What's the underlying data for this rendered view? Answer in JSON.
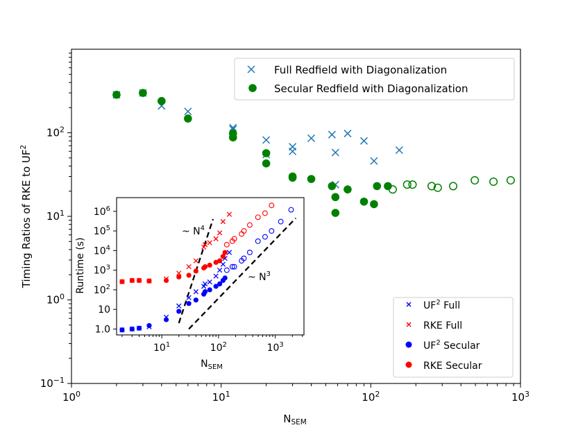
{
  "chart_data": [
    {
      "type": "scatter",
      "xlabel": "N",
      "xlabel_sub": "SEM",
      "ylabel": "Timing Ratios of RKE to UF",
      "ylabel_sup": "2",
      "xscale": "log",
      "yscale": "log",
      "xlim": [
        1,
        1000
      ],
      "ylim": [
        0.1,
        1000
      ],
      "xtick_labels": [
        {
          "base": "10",
          "exp": "0"
        },
        {
          "base": "10",
          "exp": "1"
        },
        {
          "base": "10",
          "exp": "2"
        },
        {
          "base": "10",
          "exp": "3"
        }
      ],
      "ytick_labels": [
        {
          "base": "10",
          "exp": "−1"
        },
        {
          "base": "10",
          "exp": "0"
        },
        {
          "base": "10",
          "exp": "1"
        },
        {
          "base": "10",
          "exp": "2"
        }
      ],
      "legend_position": "top-right",
      "series": [
        {
          "name": "Full Redfield with Diagonalization",
          "marker": "x",
          "color": "#1f77b4",
          "points": [
            [
              2,
              285
            ],
            [
              3,
              300
            ],
            [
              4,
              210
            ],
            [
              6,
              180
            ],
            [
              12,
              115
            ],
            [
              12,
              110
            ],
            [
              20,
              82
            ],
            [
              20,
              55
            ],
            [
              30,
              68
            ],
            [
              30,
              60
            ],
            [
              40,
              86
            ],
            [
              55,
              95
            ],
            [
              58,
              58
            ],
            [
              58,
              24
            ],
            [
              70,
              98
            ],
            [
              90,
              80
            ],
            [
              105,
              46
            ],
            [
              155,
              62
            ]
          ]
        },
        {
          "name": "Secular Redfield with Diagonalization",
          "marker": "o",
          "color": "#008000",
          "points": [
            [
              2,
              285
            ],
            [
              3,
              300
            ],
            [
              4,
              240
            ],
            [
              6,
              148
            ],
            [
              12,
              98
            ],
            [
              12,
              88
            ],
            [
              20,
              57
            ],
            [
              20,
              43
            ],
            [
              30,
              30
            ],
            [
              30,
              29
            ],
            [
              40,
              28
            ],
            [
              55,
              23
            ],
            [
              58,
              17
            ],
            [
              58,
              11
            ],
            [
              70,
              21
            ],
            [
              90,
              15
            ],
            [
              105,
              14
            ],
            [
              110,
              23
            ],
            [
              130,
              23
            ]
          ],
          "hollow_points": [
            [
              140,
              21
            ],
            [
              175,
              24
            ],
            [
              190,
              24
            ],
            [
              255,
              23
            ],
            [
              280,
              22
            ],
            [
              355,
              23
            ],
            [
              495,
              27
            ],
            [
              660,
              26
            ],
            [
              860,
              27
            ]
          ]
        }
      ]
    },
    {
      "type": "scatter",
      "xlabel": "N",
      "xlabel_sub": "SEM",
      "ylabel": "Runtime (s)",
      "xscale": "log",
      "yscale": "log",
      "xtick_labels": [
        {
          "base": "10",
          "exp": "1"
        },
        {
          "base": "10",
          "exp": "2"
        },
        {
          "base": "10",
          "exp": "3"
        }
      ],
      "ytick_labels": [
        {
          "base": "1.0",
          "exp": ""
        },
        {
          "base": "10",
          "exp": ""
        },
        {
          "base": "10",
          "exp": "2"
        },
        {
          "base": "10",
          "exp": "3"
        },
        {
          "base": "10",
          "exp": "4"
        },
        {
          "base": "10",
          "exp": "5"
        },
        {
          "base": "10",
          "exp": "6"
        }
      ],
      "legend_position": "outside-bottom-right",
      "annotations": [
        {
          "text": "~ N",
          "sup": "4"
        },
        {
          "text": "~ N",
          "sup": "3"
        }
      ],
      "series": [
        {
          "name_main": "UF",
          "name_sup": "2",
          "name_rest": " Full",
          "marker": "x",
          "color": "#0000ff",
          "points": [
            [
              2,
              0.9
            ],
            [
              3,
              1.0
            ],
            [
              4,
              1.1
            ],
            [
              6,
              1.3
            ],
            [
              12,
              4
            ],
            [
              20,
              15
            ],
            [
              30,
              40
            ],
            [
              40,
              80
            ],
            [
              55,
              150
            ],
            [
              58,
              200
            ],
            [
              70,
              250
            ],
            [
              90,
              500
            ],
            [
              105,
              1000
            ],
            [
              120,
              2000
            ],
            [
              130,
              4000
            ],
            [
              155,
              8000
            ]
          ]
        },
        {
          "name_main": "RKE",
          "name_sup": "",
          "name_rest": " Full",
          "marker": "x",
          "color": "#ff0000",
          "points": [
            [
              2,
              260
            ],
            [
              3,
              300
            ],
            [
              4,
              300
            ],
            [
              6,
              280
            ],
            [
              12,
              360
            ],
            [
              20,
              700
            ],
            [
              30,
              1500
            ],
            [
              40,
              3000
            ],
            [
              55,
              15000
            ],
            [
              58,
              20000
            ],
            [
              70,
              25000
            ],
            [
              90,
              40000
            ],
            [
              105,
              80000
            ],
            [
              120,
              300000
            ],
            [
              155,
              700000
            ]
          ]
        },
        {
          "name_main": "UF",
          "name_sup": "2",
          "name_rest": " Secular",
          "marker": "o",
          "color": "#0000ff",
          "points": [
            [
              2,
              0.9
            ],
            [
              3,
              1.0
            ],
            [
              4,
              1.1
            ],
            [
              6,
              1.5
            ],
            [
              12,
              3
            ],
            [
              20,
              8
            ],
            [
              30,
              20
            ],
            [
              40,
              30
            ],
            [
              55,
              60
            ],
            [
              58,
              80
            ],
            [
              70,
              100
            ],
            [
              90,
              150
            ],
            [
              105,
              200
            ],
            [
              120,
              300
            ],
            [
              130,
              400
            ]
          ],
          "hollow_points": [
            [
              140,
              1000
            ],
            [
              175,
              1500
            ],
            [
              190,
              1500
            ],
            [
              255,
              3000
            ],
            [
              280,
              4000
            ],
            [
              355,
              8000
            ],
            [
              495,
              30000
            ],
            [
              660,
              50000
            ],
            [
              860,
              100000
            ],
            [
              1250,
              300000
            ],
            [
              1900,
              1200000
            ]
          ]
        },
        {
          "name_main": "RKE",
          "name_sup": "",
          "name_rest": " Secular",
          "marker": "o",
          "color": "#ff0000",
          "points": [
            [
              2,
              260
            ],
            [
              3,
              300
            ],
            [
              4,
              300
            ],
            [
              6,
              280
            ],
            [
              12,
              300
            ],
            [
              20,
              450
            ],
            [
              30,
              550
            ],
            [
              40,
              900
            ],
            [
              55,
              1300
            ],
            [
              58,
              1500
            ],
            [
              70,
              1800
            ],
            [
              90,
              2500
            ],
            [
              105,
              3000
            ],
            [
              120,
              5000
            ],
            [
              130,
              8000
            ]
          ],
          "hollow_points": [
            [
              140,
              20000
            ],
            [
              175,
              30000
            ],
            [
              190,
              40000
            ],
            [
              255,
              70000
            ],
            [
              280,
              100000
            ],
            [
              355,
              200000
            ],
            [
              495,
              500000
            ],
            [
              660,
              800000
            ],
            [
              860,
              2000000
            ]
          ]
        }
      ]
    }
  ]
}
